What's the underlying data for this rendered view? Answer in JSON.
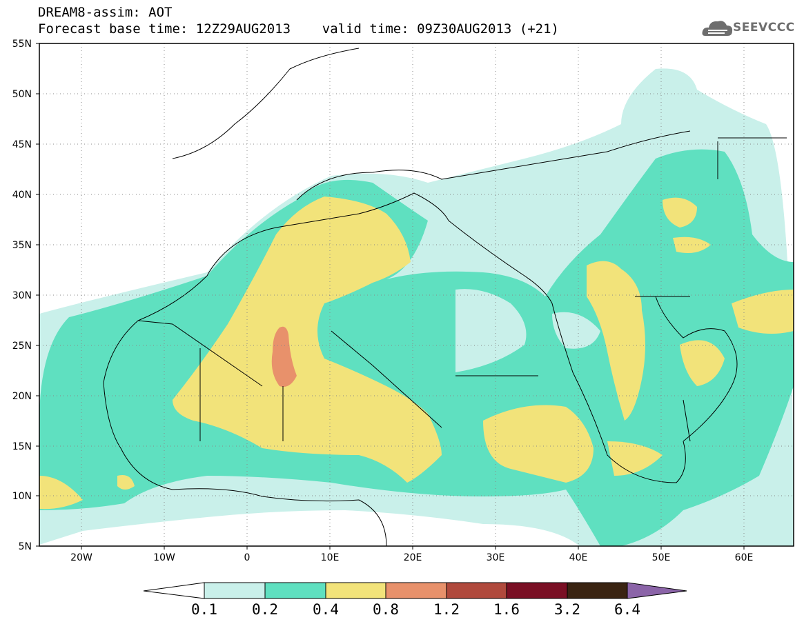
{
  "header": {
    "title_line1": "DREAM8-assim: AOT",
    "title_line2": "Forecast base time: 12Z29AUG2013    valid time: 09Z30AUG2013 (+21)"
  },
  "logo": {
    "icon": "cloud-icon",
    "text": "SEEVCCC",
    "color": "#6e6e6e"
  },
  "map": {
    "projection": "lat-lon",
    "lon_range": [
      "25W",
      "65E"
    ],
    "lat_range": [
      "5N",
      "55N"
    ],
    "lat_ticks": [
      "55N",
      "50N",
      "45N",
      "40N",
      "35N",
      "30N",
      "25N",
      "20N",
      "15N",
      "10N",
      "5N"
    ],
    "lon_ticks": [
      "20W",
      "10W",
      "0",
      "10E",
      "20E",
      "30E",
      "40E",
      "50E",
      "60E"
    ],
    "gridlines": "dotted",
    "field": "Aerosol optical thickness (dust)"
  },
  "colorbar": {
    "labels": [
      "0.1",
      "0.2",
      "0.4",
      "0.8",
      "1.2",
      "1.6",
      "3.2",
      "6.4"
    ],
    "colors": [
      "#ffffff",
      "#c9f0ea",
      "#5fe0c0",
      "#f2e37a",
      "#e8916b",
      "#b0493c",
      "#7a0f24",
      "#3a2412",
      "#8b64a8"
    ]
  }
}
